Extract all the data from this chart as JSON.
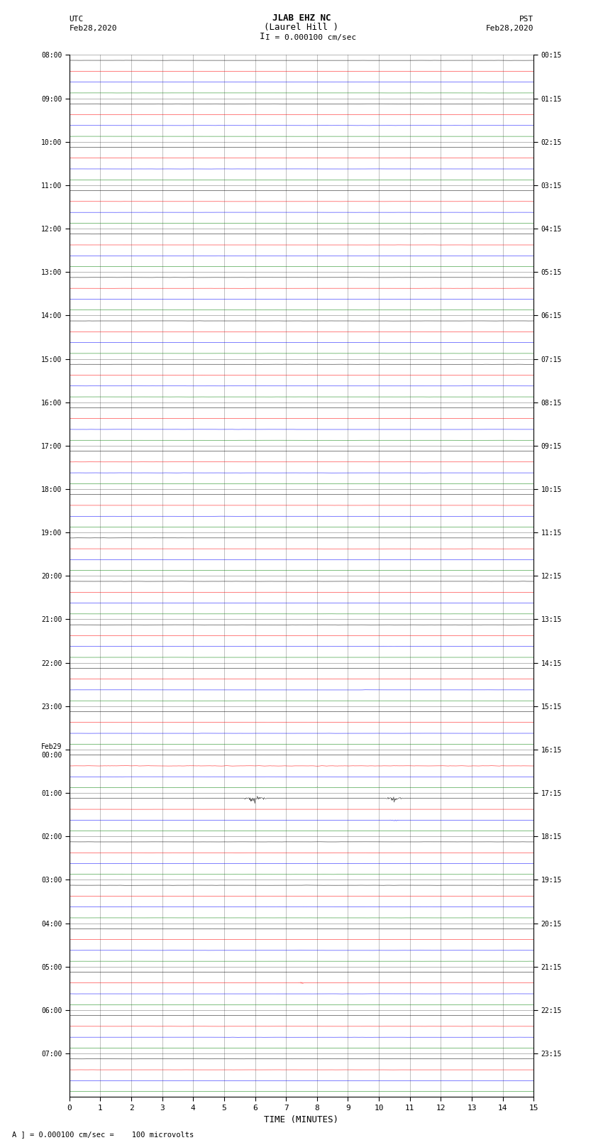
{
  "title_line1": "JLAB EHZ NC",
  "title_line2": "(Laurel Hill )",
  "scale_text": "I = 0.000100 cm/sec",
  "utc_label": "UTC",
  "utc_date": "Feb28,2020",
  "pst_label": "PST",
  "pst_date": "Feb28,2020",
  "xlabel": "TIME (MINUTES)",
  "footnote": "A ] = 0.000100 cm/sec =    100 microvolts",
  "bg_color": "#ffffff",
  "trace_colors": [
    "black",
    "red",
    "blue",
    "green"
  ],
  "xlim": [
    0,
    15
  ],
  "xticks": [
    0,
    1,
    2,
    3,
    4,
    5,
    6,
    7,
    8,
    9,
    10,
    11,
    12,
    13,
    14,
    15
  ],
  "n_hours": 24,
  "utc_times": [
    "08:00",
    "09:00",
    "10:00",
    "11:00",
    "12:00",
    "13:00",
    "14:00",
    "15:00",
    "16:00",
    "17:00",
    "18:00",
    "19:00",
    "20:00",
    "21:00",
    "22:00",
    "23:00",
    "Feb29\n00:00",
    "01:00",
    "02:00",
    "03:00",
    "04:00",
    "05:00",
    "06:00",
    "07:00"
  ],
  "pst_times": [
    "00:15",
    "01:15",
    "02:15",
    "03:15",
    "04:15",
    "05:15",
    "06:15",
    "07:15",
    "08:15",
    "09:15",
    "10:15",
    "11:15",
    "12:15",
    "13:15",
    "14:15",
    "15:15",
    "16:15",
    "17:15",
    "18:15",
    "19:15",
    "20:15",
    "21:15",
    "22:15",
    "23:15"
  ],
  "noise_amp": 0.006,
  "seed": 42
}
